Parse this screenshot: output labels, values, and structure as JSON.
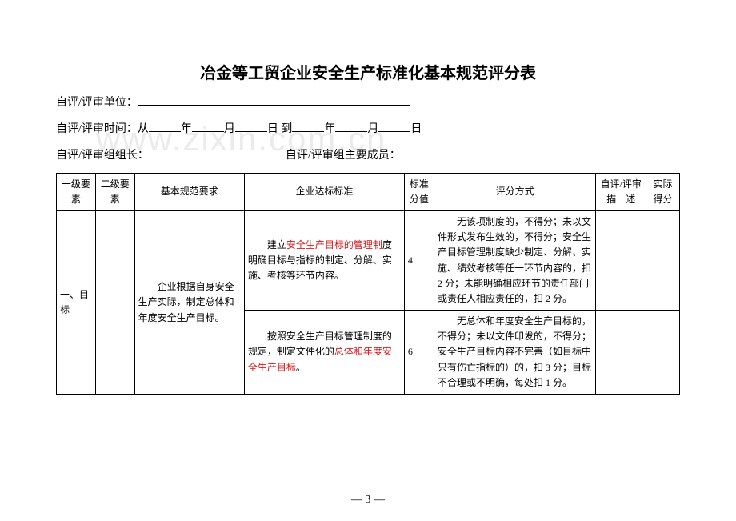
{
  "title": "冶金等工贸企业安全生产标准化基本规范评分表",
  "meta": {
    "unit_label": "自评/评审单位：",
    "time_label_prefix": "自评/评审时间：从",
    "year": "年",
    "month": "月",
    "day": "日",
    "to": "到",
    "leader_label": "自评/评审组组长：",
    "members_label": "自评/评审组主要成员："
  },
  "headers": {
    "c1": "一级要素",
    "c2": "二级要素",
    "c3": "基本规范要求",
    "c4": "企业达标标准",
    "c5": "标准分值",
    "c6": "评分方式",
    "c7a": "自评/评审",
    "c7b": "描　述",
    "c8": "实际得分"
  },
  "rows": {
    "r1": {
      "level1": "一、目标",
      "basic_req": "　　企业根据自身安全生产实际，制定总体和年度安全生产目标。",
      "std_p1_a": "　　建立",
      "std_p1_red": "安全生产目标的管理制",
      "std_p1_b": "度明确目标与指标的制定、分解、实施、考核等环节内容。",
      "score": "4",
      "scoring": "　　无该项制度的，不得分；未以文件形式发布生效的，不得分；安全生产目标管理制度缺少制定、分解、实施、绩效考核等任一环节内容的，扣 2 分；未能明确相应环节的责任部门或责任人相应责任的，扣 2 分。"
    },
    "r2": {
      "std_p1": "　　按照安全生产目标管理制度的规定，制定文件化的",
      "std_red": "总体和年度安全生产目标",
      "std_p2": "。",
      "score": "6",
      "scoring": "　　无总体和年度安全生产目标的，不得分；未以文件印发的，不得分；安全生产目标内容不完善（如目标中只有伤亡指标的）的，扣 3 分；目标不合理或不明确，每处扣 1 分。"
    }
  },
  "page_num": "— 3 —",
  "watermark": "www.zixin.com.cn"
}
